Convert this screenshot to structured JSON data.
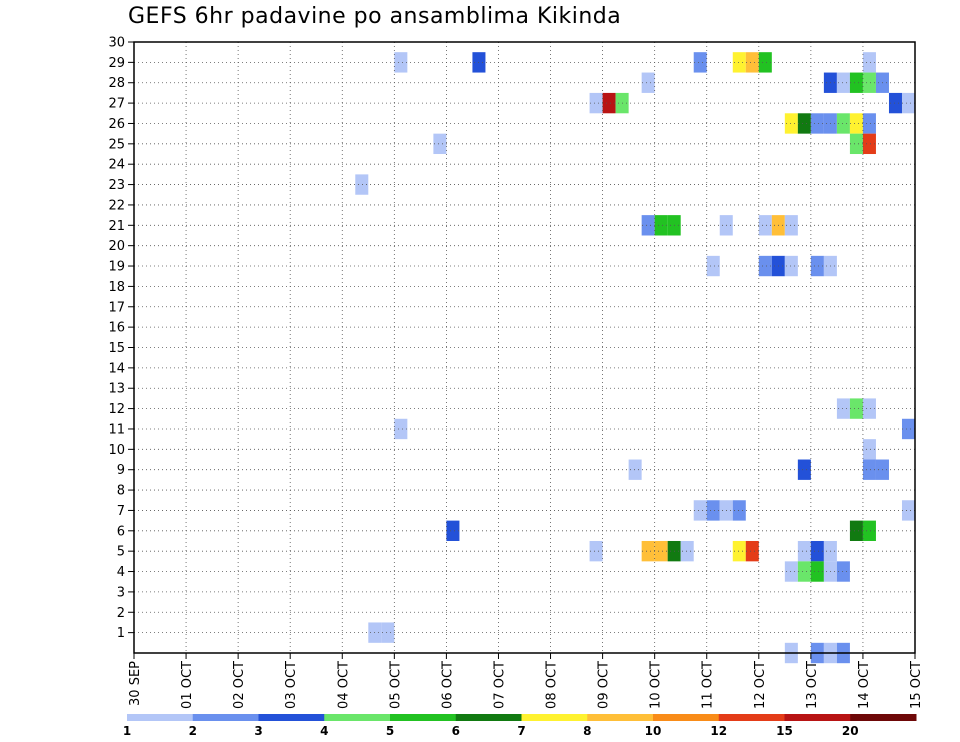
{
  "title": "GEFS 6hr padavine po ansamblima Kikinda",
  "chart_data": {
    "type": "heatmap",
    "title": "GEFS 6hr padavine po ansamblima Kikinda",
    "xlabel": "",
    "ylabel": "",
    "x_ticks": [
      "30 SEP",
      "01 OCT",
      "02 OCT",
      "03 OCT",
      "04 OCT",
      "05 OCT",
      "06 OCT",
      "07 OCT",
      "08 OCT",
      "09 OCT",
      "10 OCT",
      "11 OCT",
      "12 OCT",
      "13 OCT",
      "14 OCT",
      "15 OCT"
    ],
    "y_ticks": [
      "1",
      "2",
      "3",
      "4",
      "5",
      "6",
      "7",
      "8",
      "9",
      "10",
      "11",
      "12",
      "13",
      "14",
      "15",
      "16",
      "17",
      "18",
      "19",
      "20",
      "21",
      "22",
      "23",
      "24",
      "25",
      "26",
      "27",
      "28",
      "29",
      "30"
    ],
    "xlim_days": [
      0,
      15
    ],
    "ylim": [
      0,
      30
    ],
    "step_hours": 6,
    "grid": true,
    "colorbar": {
      "labels": [
        "1",
        "2",
        "3",
        "4",
        "5",
        "6",
        "7",
        "8",
        "10",
        "12",
        "15",
        "20"
      ],
      "colors": [
        "#b3c6f7",
        "#6a90ee",
        "#2351d8",
        "#6ae66a",
        "#22c222",
        "#117a11",
        "#fff230",
        "#ffbf38",
        "#f98c18",
        "#e43c18",
        "#b81414",
        "#6e0808"
      ]
    },
    "cells": [
      {
        "m": 29,
        "d": 5.125,
        "c": 0
      },
      {
        "m": 29,
        "d": 6.625,
        "c": 2
      },
      {
        "m": 29,
        "d": 10.875,
        "c": 1
      },
      {
        "m": 29,
        "d": 11.625,
        "c": 6
      },
      {
        "m": 29,
        "d": 11.875,
        "c": 7
      },
      {
        "m": 29,
        "d": 12.125,
        "c": 4
      },
      {
        "m": 29,
        "d": 14.125,
        "c": 0
      },
      {
        "m": 28,
        "d": 9.875,
        "c": 0
      },
      {
        "m": 28,
        "d": 13.375,
        "c": 2
      },
      {
        "m": 28,
        "d": 13.625,
        "c": 0
      },
      {
        "m": 28,
        "d": 13.875,
        "c": 4
      },
      {
        "m": 28,
        "d": 14.125,
        "c": 3
      },
      {
        "m": 28,
        "d": 14.375,
        "c": 1
      },
      {
        "m": 27,
        "d": 8.875,
        "c": 0
      },
      {
        "m": 27,
        "d": 9.125,
        "c": 10
      },
      {
        "m": 27,
        "d": 9.375,
        "c": 3
      },
      {
        "m": 27,
        "d": 14.625,
        "c": 2
      },
      {
        "m": 27,
        "d": 14.875,
        "c": 0
      },
      {
        "m": 26,
        "d": 12.625,
        "c": 6
      },
      {
        "m": 26,
        "d": 12.875,
        "c": 5
      },
      {
        "m": 26,
        "d": 13.125,
        "c": 1
      },
      {
        "m": 26,
        "d": 13.375,
        "c": 1
      },
      {
        "m": 26,
        "d": 13.625,
        "c": 3
      },
      {
        "m": 26,
        "d": 13.875,
        "c": 6
      },
      {
        "m": 26,
        "d": 14.125,
        "c": 1
      },
      {
        "m": 25,
        "d": 5.875,
        "c": 0
      },
      {
        "m": 25,
        "d": 13.875,
        "c": 3
      },
      {
        "m": 25,
        "d": 14.125,
        "c": 9
      },
      {
        "m": 23,
        "d": 4.375,
        "c": 0
      },
      {
        "m": 21,
        "d": 9.875,
        "c": 1
      },
      {
        "m": 21,
        "d": 10.125,
        "c": 4
      },
      {
        "m": 21,
        "d": 10.375,
        "c": 4
      },
      {
        "m": 21,
        "d": 11.375,
        "c": 0
      },
      {
        "m": 21,
        "d": 12.125,
        "c": 0
      },
      {
        "m": 21,
        "d": 12.375,
        "c": 7
      },
      {
        "m": 21,
        "d": 12.625,
        "c": 0
      },
      {
        "m": 19,
        "d": 11.125,
        "c": 0
      },
      {
        "m": 19,
        "d": 12.125,
        "c": 1
      },
      {
        "m": 19,
        "d": 12.375,
        "c": 2
      },
      {
        "m": 19,
        "d": 12.625,
        "c": 0
      },
      {
        "m": 19,
        "d": 13.125,
        "c": 1
      },
      {
        "m": 19,
        "d": 13.375,
        "c": 0
      },
      {
        "m": 12,
        "d": 13.625,
        "c": 0
      },
      {
        "m": 12,
        "d": 13.875,
        "c": 3
      },
      {
        "m": 12,
        "d": 14.125,
        "c": 0
      },
      {
        "m": 11,
        "d": 5.125,
        "c": 0
      },
      {
        "m": 11,
        "d": 14.875,
        "c": 1
      },
      {
        "m": 10,
        "d": 14.125,
        "c": 0
      },
      {
        "m": 9,
        "d": 9.625,
        "c": 0
      },
      {
        "m": 9,
        "d": 12.875,
        "c": 2
      },
      {
        "m": 9,
        "d": 14.125,
        "c": 1
      },
      {
        "m": 9,
        "d": 14.375,
        "c": 1
      },
      {
        "m": 7,
        "d": 10.875,
        "c": 0
      },
      {
        "m": 7,
        "d": 11.125,
        "c": 1
      },
      {
        "m": 7,
        "d": 11.375,
        "c": 0
      },
      {
        "m": 7,
        "d": 11.625,
        "c": 1
      },
      {
        "m": 7,
        "d": 14.875,
        "c": 0
      },
      {
        "m": 6,
        "d": 6.125,
        "c": 2
      },
      {
        "m": 6,
        "d": 13.875,
        "c": 5
      },
      {
        "m": 6,
        "d": 14.125,
        "c": 4
      },
      {
        "m": 5,
        "d": 8.875,
        "c": 0
      },
      {
        "m": 5,
        "d": 9.875,
        "c": 7
      },
      {
        "m": 5,
        "d": 10.125,
        "c": 7
      },
      {
        "m": 5,
        "d": 10.375,
        "c": 5
      },
      {
        "m": 5,
        "d": 10.625,
        "c": 0
      },
      {
        "m": 5,
        "d": 11.625,
        "c": 6
      },
      {
        "m": 5,
        "d": 11.875,
        "c": 9
      },
      {
        "m": 5,
        "d": 12.875,
        "c": 0
      },
      {
        "m": 5,
        "d": 13.125,
        "c": 2
      },
      {
        "m": 5,
        "d": 13.375,
        "c": 0
      },
      {
        "m": 4,
        "d": 12.625,
        "c": 0
      },
      {
        "m": 4,
        "d": 12.875,
        "c": 3
      },
      {
        "m": 4,
        "d": 13.125,
        "c": 4
      },
      {
        "m": 4,
        "d": 13.375,
        "c": 0
      },
      {
        "m": 4,
        "d": 13.625,
        "c": 1
      },
      {
        "m": 1,
        "d": 4.625,
        "c": 0
      },
      {
        "m": 1,
        "d": 4.875,
        "c": 0
      },
      {
        "m": 0,
        "d": 12.625,
        "c": 0
      },
      {
        "m": 0,
        "d": 13.125,
        "c": 1
      },
      {
        "m": 0,
        "d": 13.375,
        "c": 0
      },
      {
        "m": 0,
        "d": 13.625,
        "c": 1
      }
    ]
  }
}
